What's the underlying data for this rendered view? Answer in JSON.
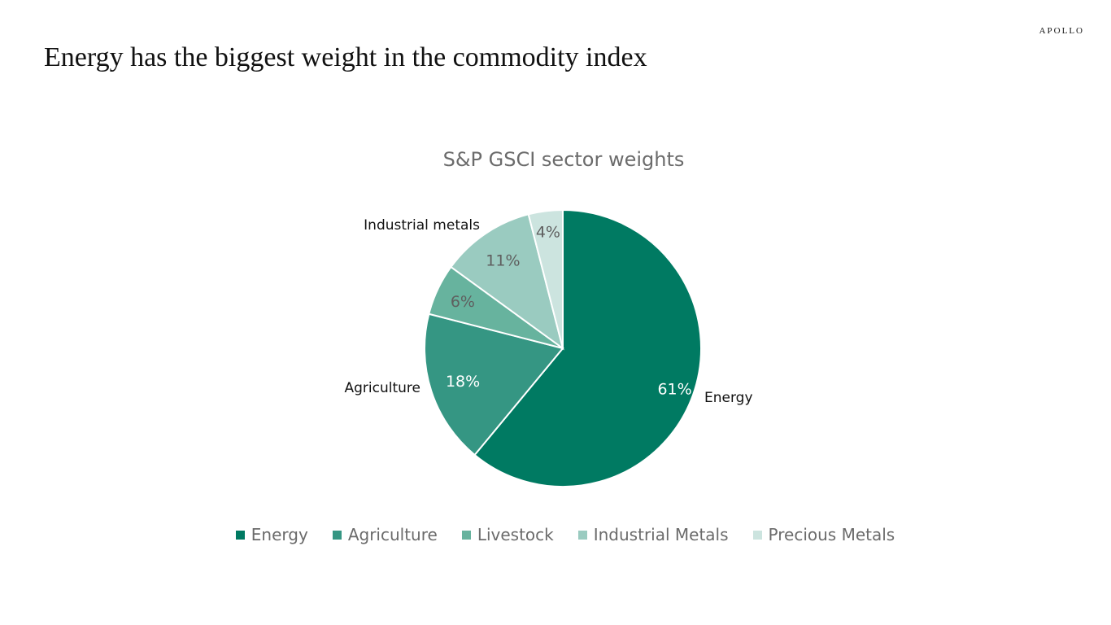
{
  "brand": "APOLLO",
  "headline": "Energy has the biggest weight in the commodity index",
  "chart_data": {
    "type": "pie",
    "title": "S&P GSCI sector weights",
    "slices": [
      {
        "name": "Energy",
        "value": 61,
        "label": "61%",
        "callout": "Energy",
        "color": "#007a62"
      },
      {
        "name": "Agriculture",
        "value": 18,
        "label": "18%",
        "callout": "Agriculture",
        "color": "#359683"
      },
      {
        "name": "Livestock",
        "value": 6,
        "label": "6%",
        "callout": "",
        "color": "#67b39e"
      },
      {
        "name": "Industrial Metals",
        "value": 11,
        "label": "11%",
        "callout": "Industrial metals",
        "color": "#9acbc0"
      },
      {
        "name": "Precious Metals",
        "value": 4,
        "label": "4%",
        "callout": "",
        "color": "#cce4df"
      }
    ],
    "legend": {
      "position": "bottom",
      "items": [
        "Energy",
        "Agriculture",
        "Livestock",
        "Industrial Metals",
        "Precious Metals"
      ]
    }
  }
}
